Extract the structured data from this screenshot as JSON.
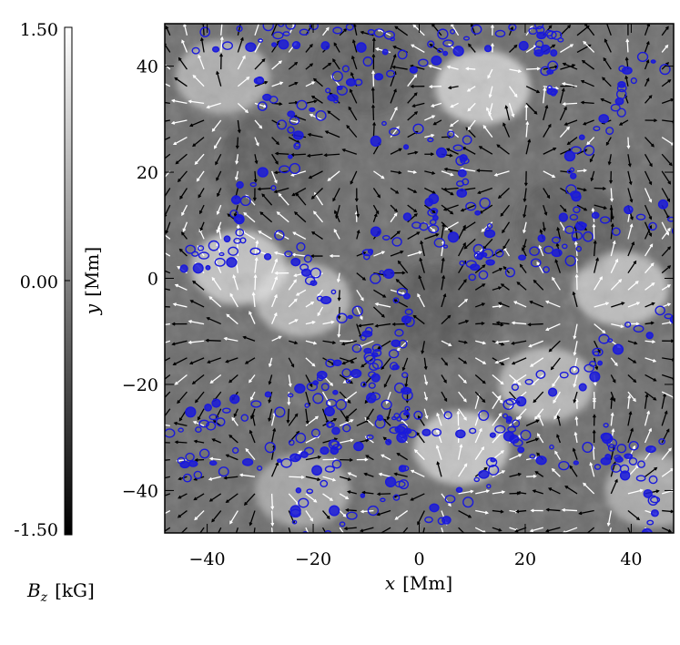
{
  "chart_data": {
    "type": "heatmap",
    "title": "",
    "colorbar": {
      "label_var": "B",
      "label_sub": "z",
      "label_unit": "[kG]",
      "min": -1.5,
      "max": 1.5,
      "ticks": [
        {
          "value": 1.5,
          "label": "1.50"
        },
        {
          "value": 0.0,
          "label": "0.00"
        },
        {
          "value": -1.5,
          "label": "-1.50"
        }
      ],
      "colormap": [
        "#000000",
        "#ffffff"
      ]
    },
    "xaxis": {
      "var": "x",
      "unit": "[Mm]",
      "range": [
        -48,
        48
      ],
      "ticks": [
        -40,
        -20,
        0,
        20,
        40
      ],
      "tick_labels": [
        "−40",
        "−20",
        "0",
        "20",
        "40"
      ]
    },
    "yaxis": {
      "var": "y",
      "unit": "[Mm]",
      "range": [
        -48,
        48
      ],
      "ticks": [
        -40,
        -20,
        0,
        20,
        40
      ],
      "tick_labels": [
        "−40",
        "−20",
        "0",
        "20",
        "40"
      ]
    },
    "contour_color": "#1a1adb",
    "arrow_colors": {
      "positive": "#ffffff",
      "negative": "#000000"
    },
    "bright_regions": [
      {
        "x": -37,
        "y": 38,
        "strength": 0.55
      },
      {
        "x": 12,
        "y": 36,
        "strength": 0.75
      },
      {
        "x": -34,
        "y": 2,
        "strength": 0.7
      },
      {
        "x": -22,
        "y": -4,
        "strength": 0.6
      },
      {
        "x": 38,
        "y": -2,
        "strength": 0.65
      },
      {
        "x": 24,
        "y": -20,
        "strength": 0.6
      },
      {
        "x": 8,
        "y": -32,
        "strength": 0.7
      },
      {
        "x": -22,
        "y": -40,
        "strength": 0.45
      },
      {
        "x": 44,
        "y": -40,
        "strength": 0.5
      }
    ],
    "dark_regions": [
      {
        "x": 4,
        "y": -6,
        "strength": 0.35
      },
      {
        "x": -28,
        "y": 22,
        "strength": 0.3
      },
      {
        "x": 28,
        "y": 10,
        "strength": 0.3
      },
      {
        "x": -10,
        "y": 40,
        "strength": 0.25
      }
    ],
    "contour_lanes": [
      {
        "points": [
          [
            -48,
            -28
          ],
          [
            -30,
            -24
          ],
          [
            -18,
            -20
          ],
          [
            -10,
            -14
          ]
        ]
      },
      {
        "points": [
          [
            -10,
            -14
          ],
          [
            -18,
            0
          ],
          [
            -28,
            6
          ],
          [
            -38,
            4
          ],
          [
            -48,
            4
          ]
        ]
      },
      {
        "points": [
          [
            -10,
            -14
          ],
          [
            -4,
            -28
          ],
          [
            -20,
            -32
          ],
          [
            -30,
            -34
          ],
          [
            -48,
            -36
          ]
        ]
      },
      {
        "points": [
          [
            -10,
            -14
          ],
          [
            -16,
            -28
          ],
          [
            -22,
            -46
          ],
          [
            -20,
            -48
          ]
        ]
      },
      {
        "points": [
          [
            -38,
            4
          ],
          [
            -34,
            14
          ],
          [
            -26,
            20
          ],
          [
            -24,
            30
          ],
          [
            -30,
            38
          ]
        ]
      },
      {
        "points": [
          [
            -24,
            30
          ],
          [
            -16,
            36
          ],
          [
            -4,
            40
          ],
          [
            4,
            44
          ],
          [
            18,
            46
          ],
          [
            30,
            44
          ]
        ]
      },
      {
        "points": [
          [
            -6,
            28
          ],
          [
            8,
            24
          ],
          [
            12,
            12
          ],
          [
            10,
            2
          ],
          [
            24,
            4
          ],
          [
            34,
            10
          ],
          [
            44,
            12
          ],
          [
            48,
            10
          ]
        ]
      },
      {
        "points": [
          [
            10,
            2
          ],
          [
            2,
            14
          ],
          [
            -8,
            6
          ],
          [
            -4,
            -6
          ],
          [
            -2,
            -20
          ],
          [
            -6,
            -28
          ]
        ]
      },
      {
        "points": [
          [
            -6,
            -28
          ],
          [
            6,
            -28
          ],
          [
            16,
            -28
          ],
          [
            22,
            -20
          ],
          [
            30,
            -18
          ],
          [
            44,
            -8
          ],
          [
            48,
            -4
          ]
        ]
      },
      {
        "points": [
          [
            16,
            -28
          ],
          [
            26,
            -34
          ],
          [
            40,
            -34
          ],
          [
            48,
            -32
          ]
        ]
      },
      {
        "points": [
          [
            14,
            -34
          ],
          [
            8,
            -40
          ],
          [
            4,
            -46
          ],
          [
            8,
            -48
          ]
        ]
      },
      {
        "points": [
          [
            -2,
            -36
          ],
          [
            -12,
            -44
          ],
          [
            -16,
            -48
          ]
        ]
      },
      {
        "points": [
          [
            24,
            4
          ],
          [
            30,
            20
          ],
          [
            34,
            30
          ],
          [
            40,
            38
          ],
          [
            48,
            42
          ]
        ]
      },
      {
        "points": [
          [
            24,
            34
          ],
          [
            22,
            42
          ],
          [
            26,
            48
          ]
        ]
      },
      {
        "points": [
          [
            -40,
            44
          ],
          [
            -28,
            46
          ],
          [
            -14,
            46
          ],
          [
            -4,
            44
          ]
        ]
      },
      {
        "points": [
          [
            36,
            -28
          ],
          [
            42,
            -40
          ],
          [
            44,
            -48
          ]
        ]
      }
    ],
    "arrows": {
      "spacing_mm": 3.2,
      "length_mm": 2.6
    }
  }
}
